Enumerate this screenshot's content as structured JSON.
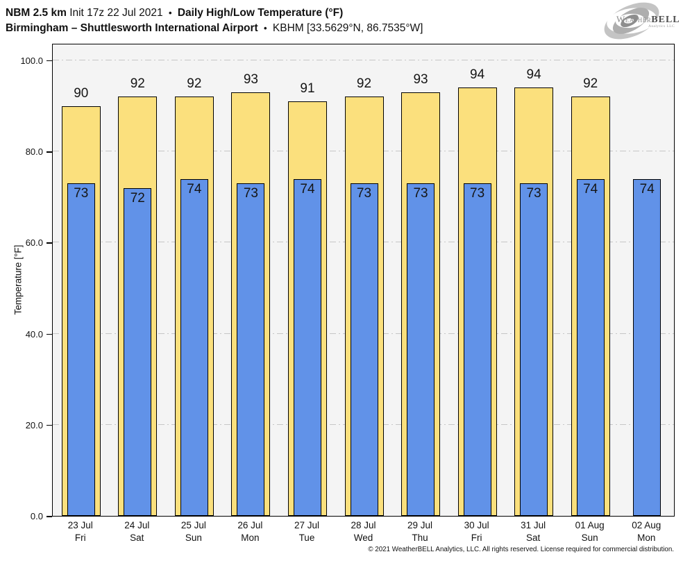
{
  "header": {
    "line1": {
      "model": "NBM 2.5 km",
      "init": "Init 17z 22 Jul 2021",
      "sep": "•",
      "title": "Daily High/Low Temperature (°F)"
    },
    "line2": {
      "station": "Birmingham – Shuttlesworth International Airport",
      "sep": "•",
      "station_id": "KBHM [33.5629°N, 86.7535°W]"
    }
  },
  "logo": {
    "brand_weather": "Weather",
    "brand_bell": "BELL",
    "subtext": "Analytics LLC"
  },
  "chart_data": {
    "type": "bar",
    "title": "Daily High/Low Temperature (°F)",
    "ylabel": "Temperature [°F]",
    "ylim": [
      0,
      103.8
    ],
    "yticks": [
      0,
      20,
      40,
      60,
      80,
      100
    ],
    "ytick_labels": [
      "0.0",
      "20.0",
      "40.0",
      "60.0",
      "80.0",
      "100.0"
    ],
    "grid": "horizontal dash-dot",
    "legend": "none",
    "categories": [
      {
        "date": "23 Jul",
        "day": "Fri"
      },
      {
        "date": "24 Jul",
        "day": "Sat"
      },
      {
        "date": "25 Jul",
        "day": "Sun"
      },
      {
        "date": "26 Jul",
        "day": "Mon"
      },
      {
        "date": "27 Jul",
        "day": "Tue"
      },
      {
        "date": "28 Jul",
        "day": "Wed"
      },
      {
        "date": "29 Jul",
        "day": "Thu"
      },
      {
        "date": "30 Jul",
        "day": "Fri"
      },
      {
        "date": "31 Jul",
        "day": "Sat"
      },
      {
        "date": "01 Aug",
        "day": "Sun"
      },
      {
        "date": "02 Aug",
        "day": "Mon"
      }
    ],
    "series": [
      {
        "name": "High",
        "values": [
          90,
          92,
          92,
          93,
          91,
          92,
          93,
          94,
          94,
          92,
          null
        ]
      },
      {
        "name": "Low",
        "values": [
          73,
          72,
          74,
          73,
          74,
          73,
          73,
          73,
          73,
          74,
          74
        ]
      }
    ]
  },
  "colors": {
    "high_bar": "#FBE07D",
    "low_bar": "#6192E8",
    "plot_bg": "#F4F4F4",
    "gridline": "#C6C6C6",
    "bar_border": "#000000"
  },
  "footer": {
    "copyright": "© 2021 WeatherBELL Analytics, LLC. All rights reserved. License required for commercial distribution."
  }
}
